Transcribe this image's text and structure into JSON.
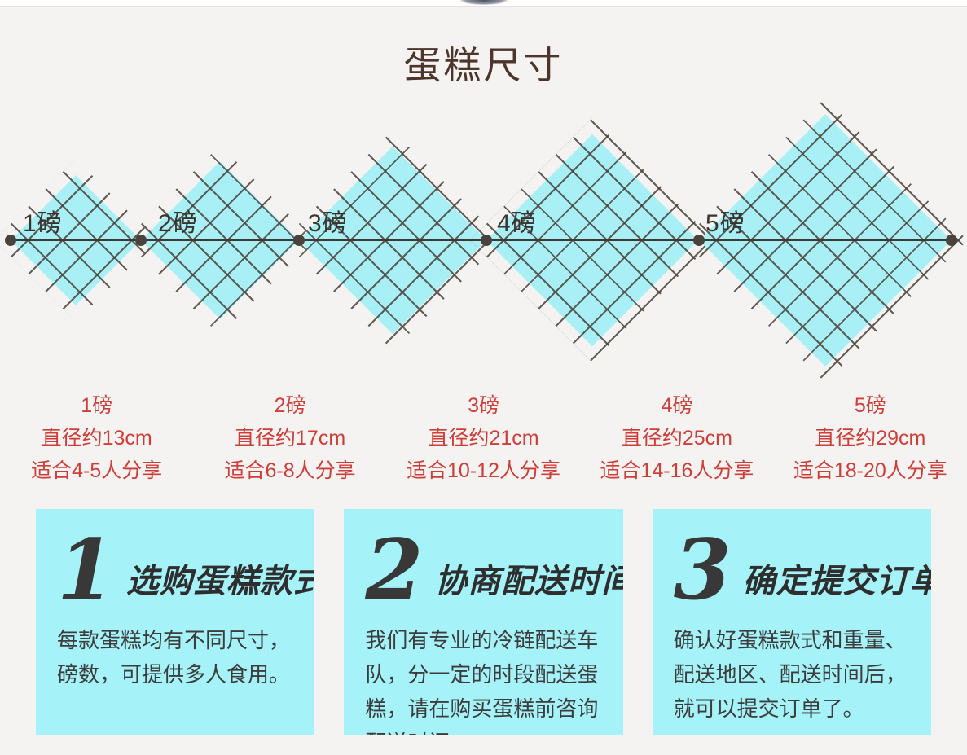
{
  "title": "蛋糕尺寸",
  "diagram": {
    "items": [
      {
        "label": "1磅",
        "size_name": "1磅",
        "diameter": "直径约13cm",
        "serving": "适合4-5人分享"
      },
      {
        "label": "2磅",
        "size_name": "2磅",
        "diameter": "直径约17cm",
        "serving": "适合6-8人分享"
      },
      {
        "label": "3磅",
        "size_name": "3磅",
        "diameter": "直径约21cm",
        "serving": "适合10-12人分享"
      },
      {
        "label": "4磅",
        "size_name": "4磅",
        "diameter": "直径约25cm",
        "serving": "适合14-16人分享"
      },
      {
        "label": "5磅",
        "size_name": "5磅",
        "diameter": "直径约29cm",
        "serving": "适合18-20人分享"
      }
    ]
  },
  "steps": [
    {
      "number": "1",
      "heading": "选购蛋糕款式",
      "body": "每款蛋糕均有不同尺寸，磅数，可提供多人食用。"
    },
    {
      "number": "2",
      "heading": "协商配送时间",
      "body": "我们有专业的冷链配送车队，分一定的时段配送蛋糕，请在购买蛋糕前咨询配送时间。"
    },
    {
      "number": "3",
      "heading": "确定提交订单",
      "body": "确认好蛋糕款式和重量、配送地区、配送时间后，就可以提交订单了。"
    }
  ],
  "colors": {
    "accent_cyan": "#a8f0f5",
    "text_red": "#cf3d38",
    "line_dark": "#3f3732",
    "title_brown": "#4d352c",
    "page_bg": "#f4f3f1"
  }
}
